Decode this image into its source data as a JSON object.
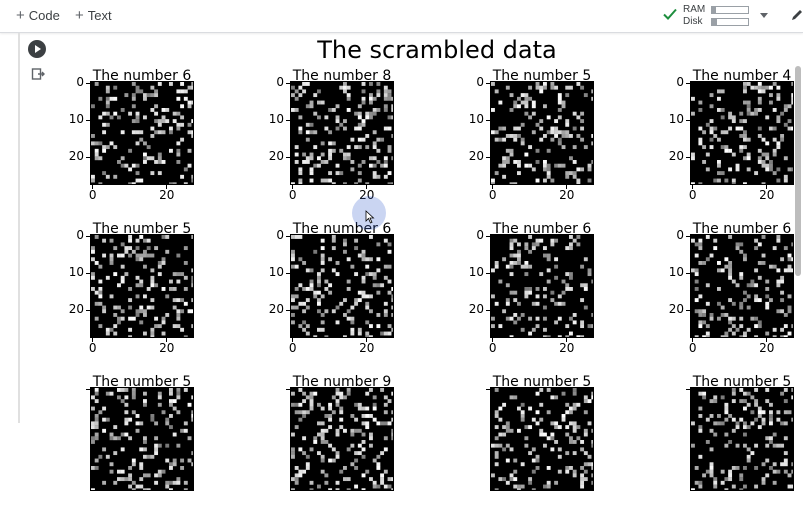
{
  "toolbar": {
    "code_label": "Code",
    "text_label": "Text",
    "ram_label": "RAM",
    "disk_label": "Disk",
    "ram_usage": 0.1,
    "disk_usage": 0.15,
    "connected_color": "#1e8e3e"
  },
  "figure": {
    "title": "The scrambled data",
    "panels": [
      {
        "title": "The number 6"
      },
      {
        "title": "The number 8"
      },
      {
        "title": "The number 5"
      },
      {
        "title": "The number 4"
      },
      {
        "title": "The number 5"
      },
      {
        "title": "The number 6"
      },
      {
        "title": "The number 6"
      },
      {
        "title": "The number 6"
      },
      {
        "title": "The number 5"
      },
      {
        "title": "The number 9"
      },
      {
        "title": "The number 5"
      },
      {
        "title": "The number 5"
      }
    ],
    "y_ticks": [
      "0",
      "10",
      "20"
    ],
    "x_ticks": [
      "0",
      "20"
    ]
  }
}
